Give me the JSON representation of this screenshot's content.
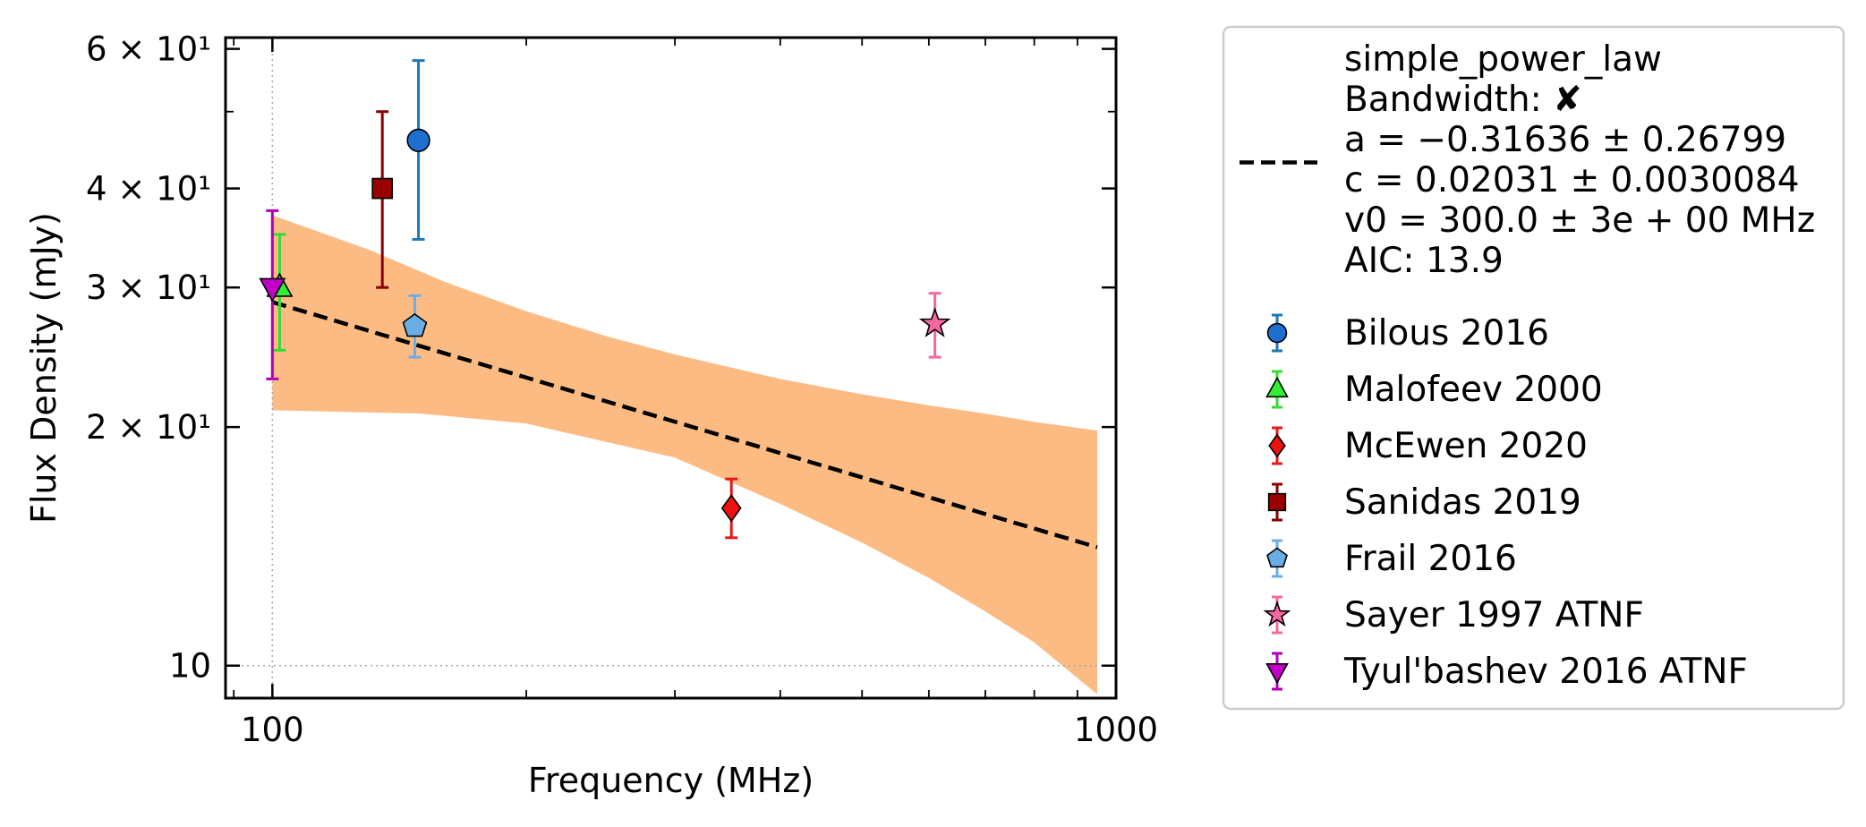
{
  "chart_data": {
    "type": "scatter",
    "xscale": "log",
    "yscale": "log",
    "xlabel": "Frequency (MHz)",
    "ylabel": "Flux Density (mJy)",
    "xlim": [
      88,
      1000
    ],
    "ylim": [
      9.1,
      62
    ],
    "x_ticks": [
      {
        "value": 100,
        "label": "100"
      },
      {
        "value": 1000,
        "label": "1000"
      }
    ],
    "y_ticks": [
      {
        "value": 10,
        "label": "10"
      },
      {
        "value": 20,
        "label": "2 × 10¹"
      },
      {
        "value": 30,
        "label": "3 × 10¹"
      },
      {
        "value": 40,
        "label": "4 × 10¹"
      },
      {
        "value": 60,
        "label": "6 × 10¹"
      }
    ],
    "grid": {
      "x": [
        100
      ],
      "y": [
        10
      ],
      "style": "dotted"
    },
    "fit": {
      "model": "simple_power_law",
      "x_range": [
        100,
        950
      ],
      "a": -0.31636,
      "c": 0.02031,
      "v0": 300.0,
      "band_lower": [
        [
          100,
          21
        ],
        [
          150,
          20.8
        ],
        [
          200,
          20.2
        ],
        [
          300,
          18.3
        ],
        [
          400,
          16.0
        ],
        [
          500,
          14.3
        ],
        [
          600,
          12.9
        ],
        [
          700,
          11.7
        ],
        [
          800,
          10.7
        ],
        [
          950,
          9.2
        ]
      ],
      "band_upper": [
        [
          100,
          37
        ],
        [
          130,
          33.5
        ],
        [
          160,
          30.5
        ],
        [
          200,
          28.0
        ],
        [
          250,
          26.0
        ],
        [
          300,
          24.7
        ],
        [
          400,
          23.0
        ],
        [
          500,
          22.0
        ],
        [
          600,
          21.3
        ],
        [
          700,
          20.8
        ],
        [
          800,
          20.3
        ],
        [
          950,
          19.8
        ]
      ],
      "band_color": "#fdbb84",
      "line_color": "#000000"
    },
    "series": [
      {
        "name": "Bilous 2016",
        "marker": "circle",
        "color": "#1f77b4",
        "fill": "#1f6fd1",
        "points": [
          {
            "x": 149,
            "y": 46,
            "yerr_low": 34.5,
            "yerr_high": 58
          }
        ]
      },
      {
        "name": "Malofeev 2000",
        "marker": "triangle-up",
        "color": "#33dd33",
        "fill": "#33ee33",
        "points": [
          {
            "x": 102,
            "y": 30,
            "yerr_low": 25,
            "yerr_high": 35
          }
        ]
      },
      {
        "name": "McEwen 2020",
        "marker": "diamond",
        "color": "#e31a1c",
        "fill": "#ee1111",
        "points": [
          {
            "x": 350,
            "y": 15.8,
            "yerr_low": 14.5,
            "yerr_high": 17.2
          }
        ]
      },
      {
        "name": "Sanidas 2019",
        "marker": "square",
        "color": "#8b0000",
        "fill": "#990000",
        "points": [
          {
            "x": 135,
            "y": 40,
            "yerr_low": 30,
            "yerr_high": 50
          }
        ]
      },
      {
        "name": "Frail 2016",
        "marker": "pentagon",
        "color": "#6baee6",
        "fill": "#6baee6",
        "points": [
          {
            "x": 147.5,
            "y": 26.8,
            "yerr_low": 24.5,
            "yerr_high": 29.3
          }
        ]
      },
      {
        "name": "Sayer 1997 ATNF",
        "marker": "star",
        "color": "#f768a1",
        "fill": "#f768a1",
        "points": [
          {
            "x": 610,
            "y": 27,
            "yerr_low": 24.5,
            "yerr_high": 29.5
          }
        ]
      },
      {
        "name": "Tyul'bashev 2016 ATNF",
        "marker": "triangle-down",
        "color": "#b000b5",
        "fill": "#c000c8",
        "points": [
          {
            "x": 100,
            "y": 30,
            "yerr_low": 23,
            "yerr_high": 37.5
          }
        ]
      }
    ],
    "legend": {
      "placement": "outside-right",
      "fit_lines": [
        "simple_power_law",
        "Bandwidth: ✘",
        "a = −0.31636 ± 0.26799",
        "c = 0.02031 ± 0.0030084",
        "v0 = 300.0 ± 3e + 00 MHz",
        "AIC: 13.9"
      ]
    }
  }
}
